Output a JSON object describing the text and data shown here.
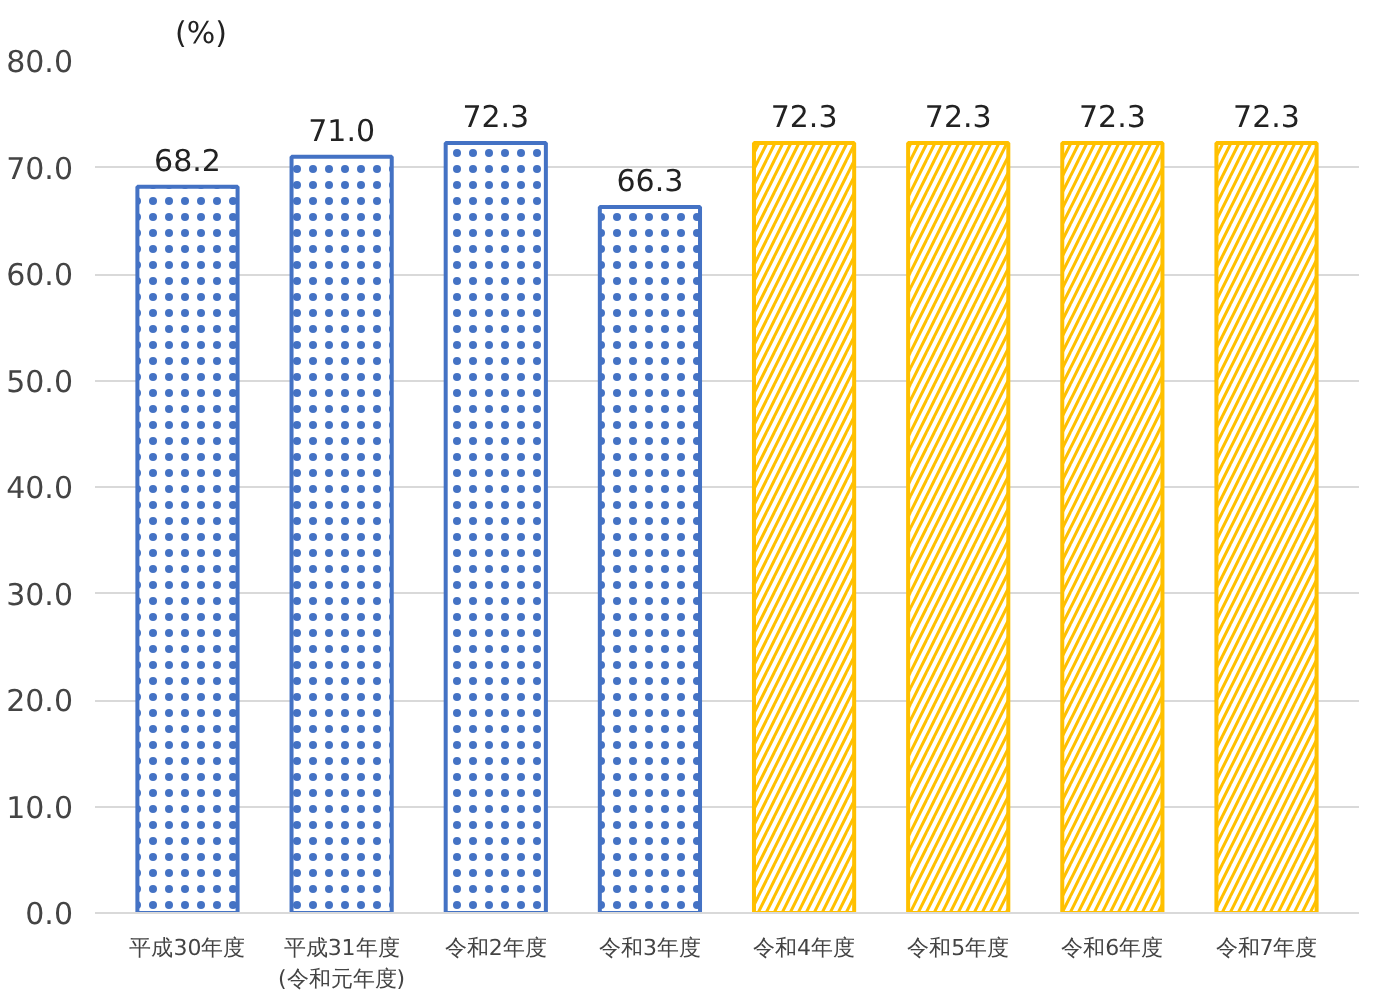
{
  "chart_data": {
    "type": "bar",
    "ylabel": "(%)",
    "categories": [
      "平成30年度",
      "平成31年度\n(令和元年度)",
      "令和2年度",
      "令和3年度",
      "令和4年度",
      "令和5年度",
      "令和6年度",
      "令和7年度"
    ],
    "values": [
      68.2,
      71.0,
      72.3,
      66.3,
      72.3,
      72.3,
      72.3,
      72.3
    ],
    "colors": [
      "#4472c4",
      "#4472c4",
      "#4472c4",
      "#4472c4",
      "#ffc000",
      "#ffc000",
      "#ffc000",
      "#ffc000"
    ],
    "ylim": [
      0,
      80
    ],
    "yticks": [
      {
        "value": 0,
        "label": "0.0"
      },
      {
        "value": 10,
        "label": "10.0"
      },
      {
        "value": 20,
        "label": "20.0"
      },
      {
        "value": 30,
        "label": "30.0"
      },
      {
        "value": 40,
        "label": "40.0"
      },
      {
        "value": 50,
        "label": "50.0"
      },
      {
        "value": 60,
        "label": "60.0"
      },
      {
        "value": 70,
        "label": "70.0"
      },
      {
        "value": 80,
        "label": "80.0"
      }
    ],
    "value_labels": [
      "68.2",
      "71.0",
      "72.3",
      "66.3",
      "72.3",
      "72.3",
      "72.3",
      "72.3"
    ],
    "grid": "y"
  }
}
